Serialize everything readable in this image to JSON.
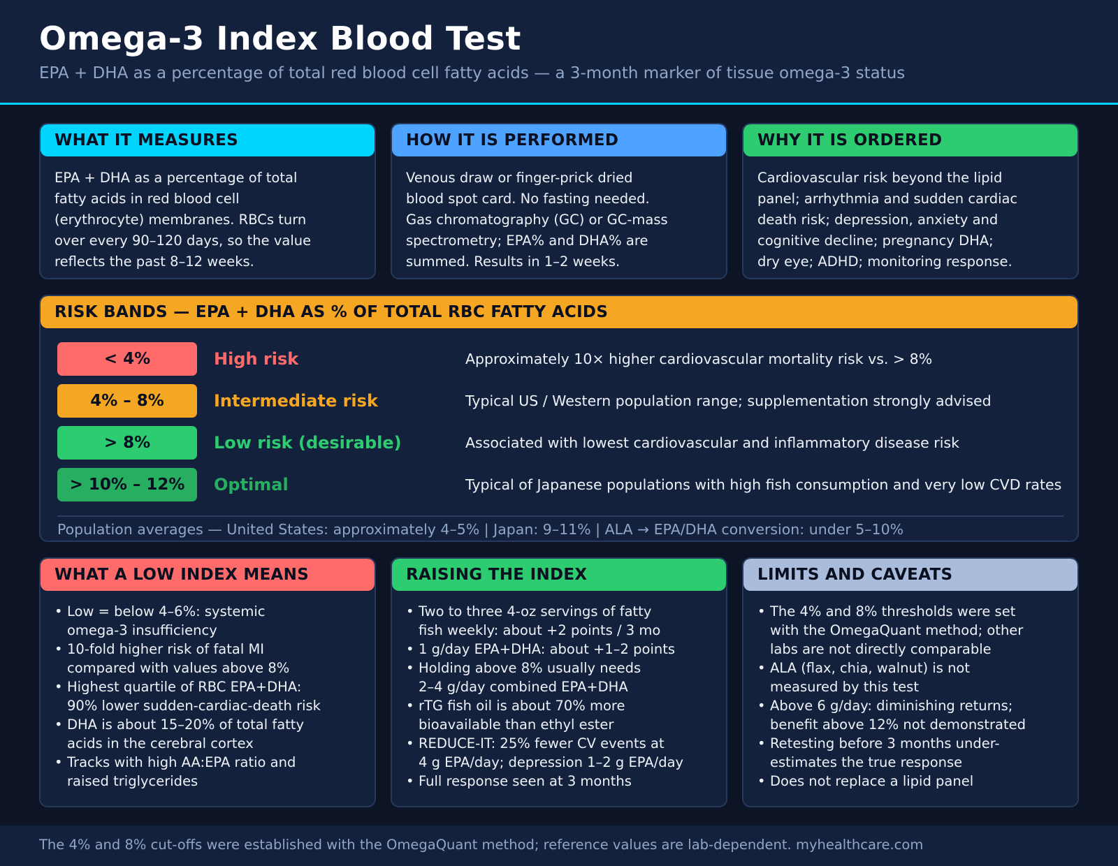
{
  "header": {
    "title": "Omega-3 Index Blood Test",
    "subtitle": "EPA + DHA as a percentage of total red blood cell fatty acids — a 3-month marker of tissue omega-3 status"
  },
  "info_cards": [
    {
      "heading": "WHAT IT MEASURES",
      "color": "#00d4ff",
      "lines": [
        "EPA + DHA as a percentage of total",
        "fatty acids in red blood cell",
        "(erythrocyte) membranes. RBCs turn",
        "over every 90–120 days, so the value",
        "reflects the past 8–12 weeks."
      ]
    },
    {
      "heading": "HOW IT IS PERFORMED",
      "color": "#4da3ff",
      "lines": [
        "Venous draw or finger-prick dried",
        "blood spot card. No fasting needed.",
        "Gas chromatography (GC) or GC-mass",
        "spectrometry; EPA% and DHA% are",
        "summed. Results in 1–2 weeks."
      ]
    },
    {
      "heading": "WHY IT IS ORDERED",
      "color": "#2ecc71",
      "lines": [
        "Cardiovascular risk beyond the lipid",
        "panel; arrhythmia and sudden cardiac",
        "death risk; depression, anxiety and",
        "cognitive decline; pregnancy DHA;",
        "dry eye; ADHD; monitoring response."
      ]
    }
  ],
  "risk_bands": {
    "heading": "RISK BANDS — EPA + DHA AS % OF TOTAL RBC FATTY ACIDS",
    "color": "#f5a623",
    "bands": [
      {
        "range": "< 4%",
        "label": "High risk",
        "description": "Approximately 10× higher cardiovascular mortality risk vs. > 8%",
        "pill_color": "#ff6b6b",
        "label_color": "#ff6b6b"
      },
      {
        "range": "4% – 8%",
        "label": "Intermediate risk",
        "description": "Typical US / Western population range; supplementation strongly advised",
        "pill_color": "#f5a623",
        "label_color": "#f5a623"
      },
      {
        "range": "> 8%",
        "label": "Low risk (desirable)",
        "description": "Associated with lowest cardiovascular and inflammatory disease risk",
        "pill_color": "#2ecc71",
        "label_color": "#2ecc71"
      },
      {
        "range": "> 10% – 12%",
        "label": "Optimal",
        "description": "Typical of Japanese populations with high fish consumption and very low CVD rates",
        "pill_color": "#27ae60",
        "label_color": "#27ae60"
      }
    ],
    "population_note": "Population averages — United States: approximately 4–5% | Japan: 9–11% | ALA → EPA/DHA conversion: under 5–10%"
  },
  "detail_cards": [
    {
      "heading": "WHAT A LOW INDEX MEANS",
      "color": "#ff6b6b",
      "bullets": [
        [
          "Low = below 4–6%: systemic",
          "omega-3 insufficiency"
        ],
        [
          "10-fold higher risk of fatal MI",
          "compared with values above 8%"
        ],
        [
          "Highest quartile of RBC EPA+DHA:",
          "90% lower sudden-cardiac-death risk"
        ],
        [
          "DHA is about 15–20% of total fatty",
          "acids in the cerebral cortex"
        ],
        [
          "Tracks with high AA:EPA ratio and",
          "raised triglycerides"
        ]
      ]
    },
    {
      "heading": "RAISING THE INDEX",
      "color": "#2ecc71",
      "bullets": [
        [
          "Two to three 4-oz servings of fatty",
          "fish weekly: about +2 points / 3 mo"
        ],
        [
          "1 g/day EPA+DHA: about +1–2 points"
        ],
        [
          "Holding above 8% usually needs",
          "2–4 g/day combined EPA+DHA"
        ],
        [
          "rTG fish oil is about 70% more",
          "bioavailable than ethyl ester"
        ],
        [
          "REDUCE-IT: 25% fewer CV events at",
          "4 g EPA/day; depression 1–2 g EPA/day"
        ],
        [
          "Full response seen at 3 months"
        ]
      ]
    },
    {
      "heading": "LIMITS AND CAVEATS",
      "color": "#a9bcdb",
      "bullets": [
        [
          "The 4% and 8% thresholds were set",
          "with the OmegaQuant method; other",
          "labs are not directly comparable"
        ],
        [
          "ALA (flax, chia, walnut) is not",
          "measured by this test"
        ],
        [
          "Above 6 g/day: diminishing returns;",
          "benefit above 12% not demonstrated"
        ],
        [
          "Retesting before 3 months under-",
          "estimates the true response"
        ],
        [
          "Does not replace a lipid panel"
        ]
      ]
    }
  ],
  "footer": {
    "text": "The 4% and 8% cut-offs were established with the OmegaQuant method; reference values are lab-dependent. myhealthcare.com"
  }
}
